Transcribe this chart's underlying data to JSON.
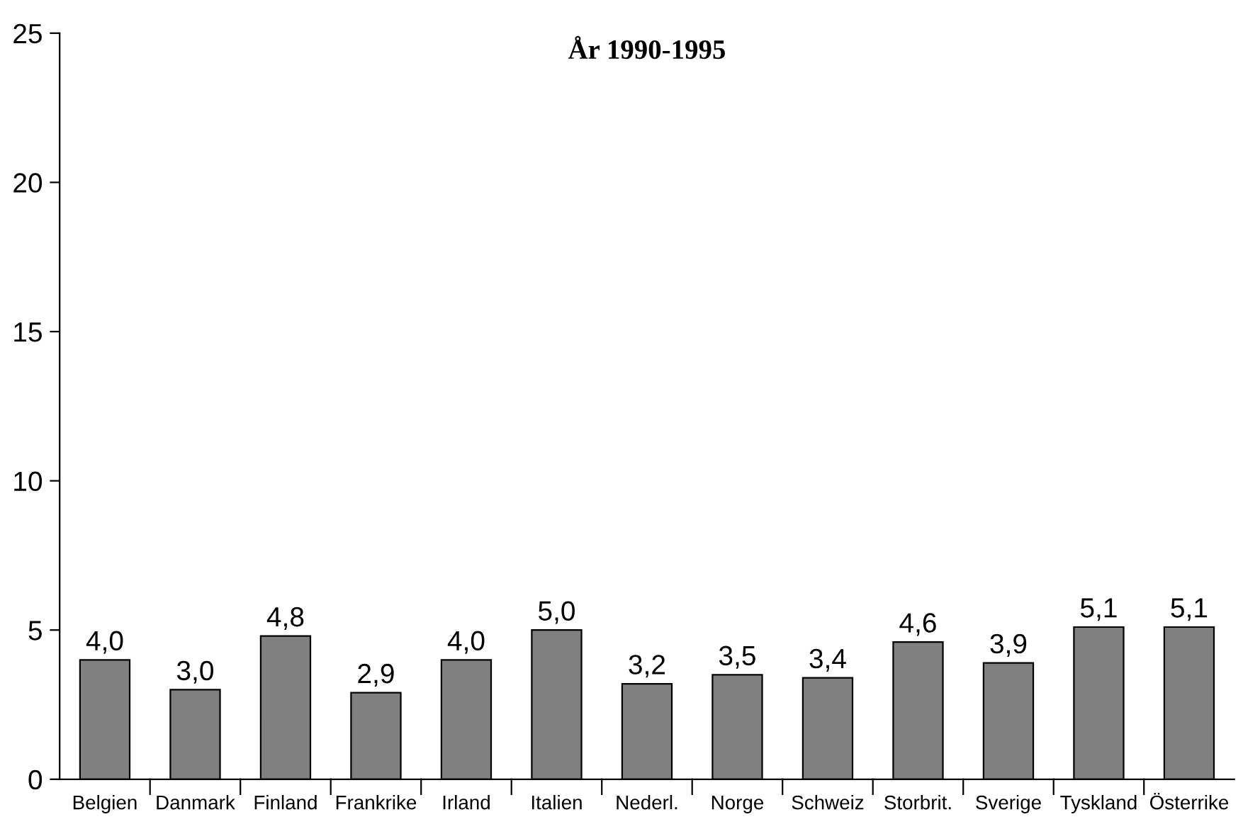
{
  "chart_data": {
    "type": "bar",
    "title": "År 1990-1995",
    "categories": [
      "Belgien",
      "Danmark",
      "Finland",
      "Frankrike",
      "Irland",
      "Italien",
      "Nederl.",
      "Norge",
      "Schweiz",
      "Storbrit.",
      "Sverige",
      "Tyskland",
      "Österrike"
    ],
    "values": [
      4.0,
      3.0,
      4.8,
      2.9,
      4.0,
      5.0,
      3.2,
      3.5,
      3.4,
      4.6,
      3.9,
      5.1,
      5.1
    ],
    "value_labels": [
      "4,0",
      "3,0",
      "4,8",
      "2,9",
      "4,0",
      "5,0",
      "3,2",
      "3,5",
      "3,4",
      "4,6",
      "3,9",
      "5,1",
      "5,1"
    ],
    "color": "#808080",
    "ylim": [
      0,
      25
    ],
    "yticks": [
      0,
      5,
      10,
      15,
      20,
      25
    ],
    "grid": false
  }
}
